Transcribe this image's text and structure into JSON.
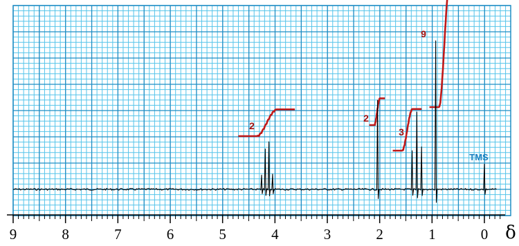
{
  "chart_data": {
    "type": "line",
    "title": "",
    "xlabel": "δ",
    "ylabel": "",
    "xlim": [
      9,
      -0.3
    ],
    "x_ticks": [
      "9",
      "8",
      "7",
      "6",
      "5",
      "4",
      "3",
      "2",
      "1",
      "0"
    ],
    "x_reversed": true,
    "grid": true,
    "colors": {
      "grid_minor": "#55c4ea",
      "grid_major": "#1f8dc4",
      "spectrum": "#000000",
      "integral": "#c01818",
      "integral_label": "#a01010",
      "tms_label": "#1a7fbf",
      "axis": "#000000"
    },
    "peaks": [
      {
        "shift": 4.15,
        "multiplicity": "quartet",
        "spacing": 0.07,
        "height": 0.32
      },
      {
        "shift": 2.04,
        "multiplicity": "singlet",
        "height": 0.6
      },
      {
        "shift": 1.29,
        "multiplicity": "triplet",
        "spacing": 0.09,
        "height": 0.52
      },
      {
        "shift": 0.93,
        "multiplicity": "singlet",
        "height": 1.0
      },
      {
        "shift": 0.0,
        "multiplicity": "singlet",
        "height": 0.17
      }
    ],
    "integrals": [
      {
        "label": "2",
        "x_start": 4.7,
        "x_end": 3.62,
        "step": 0.18
      },
      {
        "label": "2",
        "x_start": 2.2,
        "x_end": 1.9,
        "step": 0.18
      },
      {
        "label": "3",
        "x_start": 1.75,
        "x_end": 1.2,
        "step": 0.28
      },
      {
        "label": "9",
        "x_start": 1.05,
        "x_end": 0.48,
        "step": 0.85
      }
    ],
    "annotations": [
      {
        "text": "TMS",
        "x": 0.0
      }
    ]
  }
}
